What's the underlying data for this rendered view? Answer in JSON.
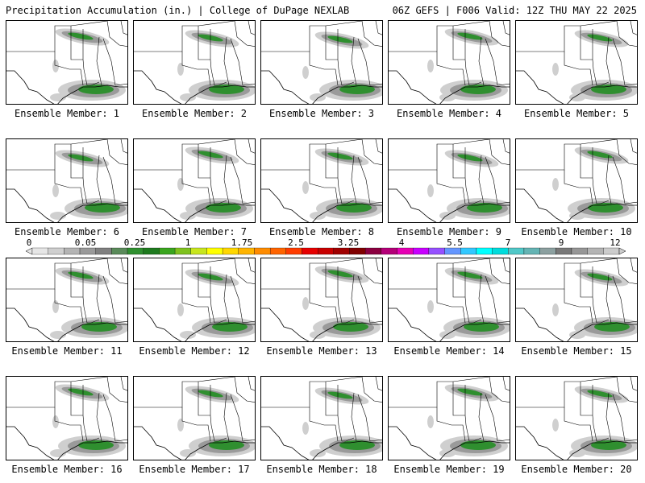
{
  "header": {
    "title": "Precipitation Accumulation (in.) | College of DuPage NEXLAB",
    "run_info": "06Z GEFS | F006 Valid: 12Z THU MAY 22 2025"
  },
  "panels": [
    {
      "label": "Ensemble Member: 1"
    },
    {
      "label": "Ensemble Member: 2"
    },
    {
      "label": "Ensemble Member: 3"
    },
    {
      "label": "Ensemble Member: 4"
    },
    {
      "label": "Ensemble Member: 5"
    },
    {
      "label": "Ensemble Member: 6"
    },
    {
      "label": "Ensemble Member: 7"
    },
    {
      "label": "Ensemble Member: 8"
    },
    {
      "label": "Ensemble Member: 9"
    },
    {
      "label": "Ensemble Member: 10"
    },
    {
      "label": "Ensemble Member: 11"
    },
    {
      "label": "Ensemble Member: 12"
    },
    {
      "label": "Ensemble Member: 13"
    },
    {
      "label": "Ensemble Member: 14"
    },
    {
      "label": "Ensemble Member: 15"
    },
    {
      "label": "Ensemble Member: 16"
    },
    {
      "label": "Ensemble Member: 17"
    },
    {
      "label": "Ensemble Member: 18"
    },
    {
      "label": "Ensemble Member: 19"
    },
    {
      "label": "Ensemble Member: 20"
    }
  ],
  "colorbar": {
    "labels": [
      "0",
      "0.05",
      "0.25",
      "1",
      "1.75",
      "2.5",
      "3.25",
      "4",
      "5.5",
      "7",
      "9",
      "12"
    ],
    "colors": [
      "#e6e6e6",
      "#cfcfcf",
      "#b4b4b4",
      "#9a9a9a",
      "#808080",
      "#5a8a5a",
      "#2f8f2f",
      "#1e7a1e",
      "#3aa51e",
      "#7fc21e",
      "#c8e61e",
      "#ffff00",
      "#ffd700",
      "#ffb400",
      "#ff8c00",
      "#ff6400",
      "#ff3c00",
      "#e60000",
      "#c80000",
      "#a00000",
      "#800000",
      "#8b0040",
      "#b40078",
      "#e600b4",
      "#c800ff",
      "#9650ff",
      "#6496ff",
      "#32c8ff",
      "#00ffff",
      "#00dcdc",
      "#50c8c8",
      "#64b4b4",
      "#8ca0a0",
      "#787878",
      "#969696",
      "#b4b4b4",
      "#cccccc"
    ]
  }
}
